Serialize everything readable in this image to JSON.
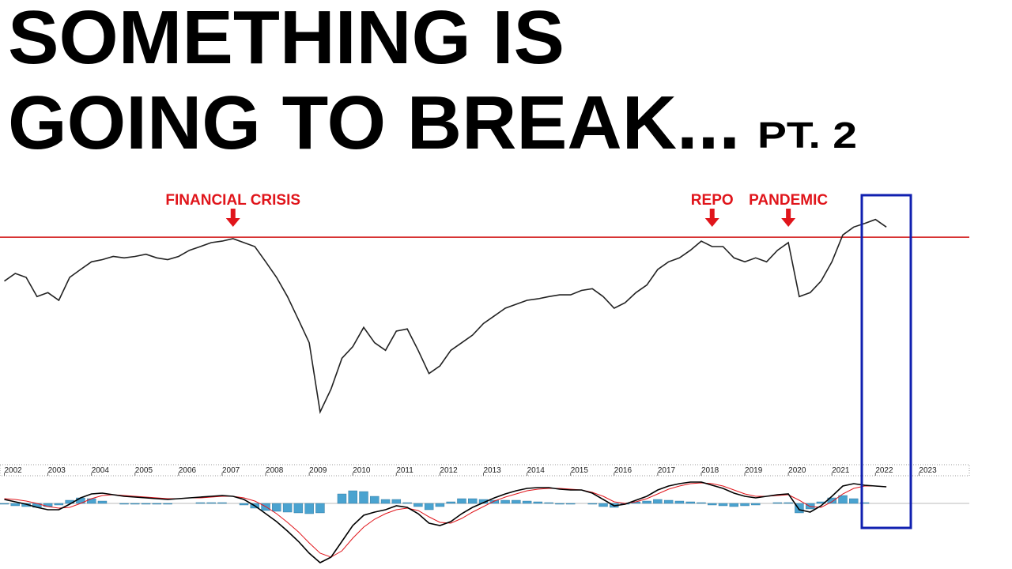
{
  "chart_data": {
    "type": "line",
    "title_lines": [
      "SOMETHING IS",
      "GOING TO BREAK..."
    ],
    "title_suffix": "PT. 2",
    "annotations": [
      {
        "text": "FINANCIAL CRISIS",
        "x": 2007.25
      },
      {
        "text": "REPO",
        "x": 2018.25
      },
      {
        "text": "PANDEMIC",
        "x": 2020
      }
    ],
    "x": [
      2002,
      2002.25,
      2002.5,
      2002.75,
      2003,
      2003.25,
      2003.5,
      2003.75,
      2004,
      2004.25,
      2004.5,
      2004.75,
      2005,
      2005.25,
      2005.5,
      2005.75,
      2006,
      2006.25,
      2006.5,
      2006.75,
      2007,
      2007.25,
      2007.5,
      2007.75,
      2008,
      2008.25,
      2008.5,
      2008.75,
      2009,
      2009.25,
      2009.5,
      2009.75,
      2010,
      2010.25,
      2010.5,
      2010.75,
      2011,
      2011.25,
      2011.5,
      2011.75,
      2012,
      2012.25,
      2012.5,
      2012.75,
      2013,
      2013.25,
      2013.5,
      2013.75,
      2014,
      2014.25,
      2014.5,
      2014.75,
      2015,
      2015.25,
      2015.5,
      2015.75,
      2016,
      2016.25,
      2016.5,
      2016.75,
      2017,
      2017.25,
      2017.5,
      2017.75,
      2018,
      2018.25,
      2018.5,
      2018.75,
      2019,
      2019.25,
      2019.5,
      2019.75,
      2020,
      2020.25,
      2020.5,
      2020.75,
      2021,
      2021.25,
      2021.5,
      2021.75,
      2022,
      2022.25
    ],
    "xlim": [
      2001.9,
      2023.9
    ],
    "xticks": [
      2002,
      2003,
      2004,
      2005,
      2006,
      2007,
      2008,
      2009,
      2010,
      2011,
      2012,
      2013,
      2014,
      2015,
      2016,
      2017,
      2018,
      2019,
      2020,
      2021,
      2022,
      2023
    ],
    "ylim": [
      0,
      100
    ],
    "reference_line": 89.7,
    "reference_color": "#d01010",
    "series": [
      {
        "color": "#222222",
        "values": [
          71.9,
          75,
          73.4,
          65.6,
          67.2,
          64.1,
          73.4,
          76.6,
          79.7,
          80.6,
          81.9,
          81.3,
          81.9,
          82.8,
          81.3,
          80.6,
          81.9,
          84.4,
          85.9,
          87.5,
          88.1,
          89.1,
          87.5,
          85.9,
          79.7,
          73.4,
          65.6,
          56.3,
          46.9,
          18.8,
          28.1,
          40.6,
          45.3,
          53.1,
          46.9,
          43.8,
          51.6,
          52.5,
          43.8,
          34.4,
          37.5,
          43.8,
          46.9,
          50,
          54.7,
          57.8,
          60.9,
          62.5,
          64.1,
          64.7,
          65.6,
          66.3,
          66.3,
          68.1,
          68.8,
          65.6,
          60.9,
          63.1,
          67.2,
          70.3,
          76.6,
          79.7,
          81.3,
          84.4,
          88.1,
          85.9,
          85.9,
          81.3,
          79.7,
          81.3,
          79.7,
          84.4,
          87.5,
          65.6,
          67.2,
          71.9,
          79.7,
          90.6,
          93.8,
          95.3,
          96.9,
          93.8
        ]
      }
    ],
    "macd": {
      "ylim": [
        -78,
        30
      ],
      "macd_color": "#000000",
      "signal_color": "#e0151b",
      "histogram_color": "#4aa3d0",
      "macd": [
        5,
        2,
        -1,
        -5,
        -8,
        -8,
        -1,
        7,
        12,
        13,
        11,
        9,
        8,
        7,
        6,
        5,
        6,
        7,
        8,
        9,
        10,
        9,
        5,
        -3,
        -13,
        -23,
        -35,
        -48,
        -63,
        -75,
        -68,
        -48,
        -28,
        -15,
        -11,
        -8,
        -3,
        -5,
        -13,
        -25,
        -28,
        -23,
        -13,
        -5,
        1,
        7,
        12,
        16,
        19,
        20,
        20,
        18,
        17,
        17,
        13,
        5,
        -3,
        -1,
        4,
        9,
        17,
        22,
        25,
        27,
        27,
        23,
        19,
        13,
        9,
        7,
        9,
        11,
        12,
        -8,
        -11,
        -3,
        9,
        22,
        25,
        23,
        22,
        21
      ],
      "signal": [
        6,
        5,
        3,
        0,
        -4,
        -6,
        -5,
        0,
        6,
        10,
        11,
        10,
        9,
        8,
        7,
        6,
        6,
        7,
        7,
        8,
        9,
        9,
        7,
        3,
        -4,
        -13,
        -24,
        -36,
        -50,
        -63,
        -68,
        -60,
        -44,
        -30,
        -20,
        -13,
        -8,
        -6,
        -9,
        -17,
        -24,
        -25,
        -19,
        -11,
        -4,
        3,
        8,
        12,
        16,
        18,
        19,
        19,
        18,
        17,
        14,
        9,
        2,
        0,
        2,
        6,
        12,
        18,
        22,
        25,
        26,
        25,
        22,
        17,
        12,
        9,
        9,
        10,
        11,
        4,
        -4,
        -5,
        2,
        12,
        19,
        22,
        22,
        21
      ],
      "histogram": [
        -1,
        -3,
        -4,
        -5,
        -4,
        -2,
        4,
        7,
        6,
        3,
        0,
        -1,
        -1,
        -1,
        -1,
        -1,
        0,
        0,
        1,
        1,
        1,
        0,
        -2,
        -6,
        -9,
        -10,
        -11,
        -12,
        -13,
        -12,
        0,
        12,
        16,
        15,
        9,
        5,
        5,
        1,
        -4,
        -8,
        -4,
        2,
        6,
        6,
        5,
        4,
        4,
        4,
        3,
        2,
        1,
        -1,
        -1,
        0,
        -1,
        -4,
        -5,
        -1,
        2,
        3,
        5,
        4,
        3,
        2,
        1,
        -2,
        -3,
        -4,
        -3,
        -2,
        0,
        1,
        1,
        -12,
        -7,
        2,
        7,
        10,
        6,
        1,
        0,
        0
      ]
    }
  }
}
